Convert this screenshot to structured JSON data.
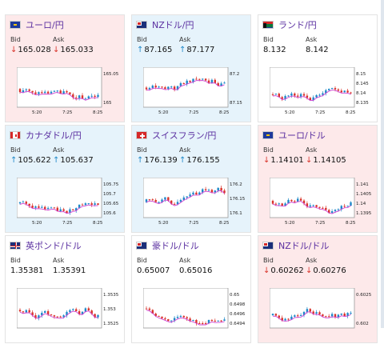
{
  "colors": {
    "down_bg": "#fde9ea",
    "up_bg": "#e6f3fb",
    "flat_bg": "#ffffff",
    "title": "#5a2fa0",
    "down_arrow": "#d9342b",
    "up_arrow": "#1e88c8"
  },
  "labels": {
    "bid": "Bid",
    "ask": "Ask"
  },
  "cards": [
    {
      "pair": "ユーロ/円",
      "flag": "eu-flag-icon",
      "trend": "down",
      "arrow": "↓",
      "bid": "165.028",
      "ask": "165.033",
      "yticks": [
        "165.05",
        "165"
      ],
      "xticks": [
        "5:20",
        "7:25",
        "8:25"
      ]
    },
    {
      "pair": "NZドル/円",
      "flag": "nz-flag-icon",
      "trend": "up",
      "arrow": "↑",
      "bid": "87.165",
      "ask": "87.177",
      "yticks": [
        "87.2",
        "87.15"
      ],
      "xticks": [
        "5:20",
        "7:25",
        "8:25"
      ]
    },
    {
      "pair": "ランド/円",
      "flag": "za-flag-icon",
      "trend": "flat",
      "arrow": "",
      "bid": "8.132",
      "ask": "8.142",
      "yticks": [
        "8.15",
        "8.145",
        "8.14",
        "8.135"
      ],
      "xticks": [
        "5:20",
        "7:25",
        "8:25"
      ]
    },
    {
      "pair": "カナダドル/円",
      "flag": "ca-flag-icon",
      "trend": "up",
      "arrow": "↑",
      "bid": "105.622",
      "ask": "105.637",
      "yticks": [
        "105.75",
        "105.7",
        "105.65",
        "105.6"
      ],
      "xticks": [
        "5:20",
        "7:25",
        "8:25"
      ]
    },
    {
      "pair": "スイスフラン/円",
      "flag": "ch-flag-icon",
      "trend": "up",
      "arrow": "↑",
      "bid": "176.139",
      "ask": "176.155",
      "yticks": [
        "176.2",
        "176.15",
        "176.1"
      ],
      "xticks": [
        "5:20",
        "7:25",
        "8:25"
      ]
    },
    {
      "pair": "ユーロ/ドル",
      "flag": "eu-flag-icon",
      "trend": "down",
      "arrow": "↓",
      "bid": "1.14101",
      "ask": "1.14105",
      "yticks": [
        "1.141",
        "1.1405",
        "1.14",
        "1.1395"
      ],
      "xticks": [
        "5:20",
        "7:25",
        "8:25"
      ]
    },
    {
      "pair": "英ポンド/ドル",
      "flag": "gb-flag-icon",
      "trend": "flat",
      "arrow": "",
      "bid": "1.35381",
      "ask": "1.35391",
      "yticks": [
        "1.3535",
        "1.353",
        "1.3525"
      ],
      "xticks": []
    },
    {
      "pair": "豪ドル/ドル",
      "flag": "au-flag-icon",
      "trend": "flat",
      "arrow": "",
      "bid": "0.65007",
      "ask": "0.65016",
      "yticks": [
        "0.65",
        "0.6498",
        "0.6496",
        "0.6494"
      ],
      "xticks": []
    },
    {
      "pair": "NZドル/ドル",
      "flag": "nz-flag-icon",
      "trend": "down",
      "arrow": "↓",
      "bid": "0.60262",
      "ask": "0.60276",
      "yticks": [
        "0.6025",
        "0.602"
      ],
      "xticks": []
    }
  ]
}
